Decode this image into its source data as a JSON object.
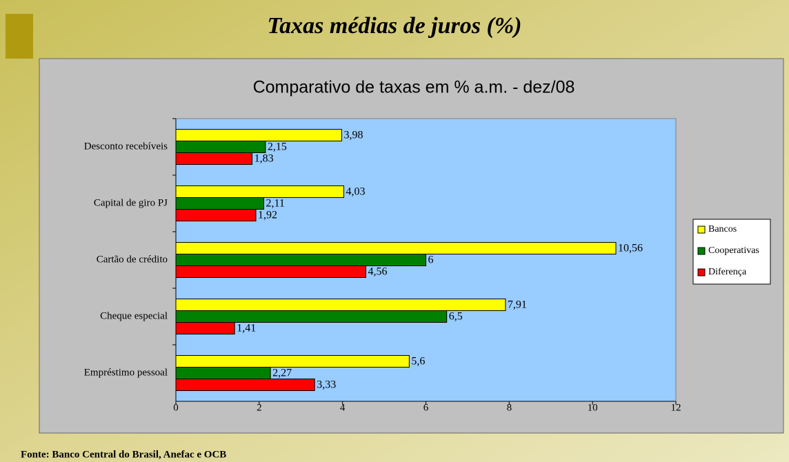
{
  "slide": {
    "title": "Taxas médias de juros (%)",
    "source": "Fonte: Banco Central do Brasil, Anefac e OCB"
  },
  "chart_data": {
    "type": "bar",
    "orientation": "horizontal",
    "title": "Comparativo de taxas em % a.m. - dez/08",
    "categories": [
      "Desconto recebíveis",
      "Capital de giro PJ",
      "Cartão de crédito",
      "Cheque especial",
      "Empréstimo pessoal"
    ],
    "series": [
      {
        "name": "Bancos",
        "color": "#ffff00",
        "values": [
          3.98,
          4.03,
          10.56,
          7.91,
          5.6
        ],
        "value_labels": [
          "3,98",
          "4,03",
          "10,56",
          "7,91",
          "5,6"
        ]
      },
      {
        "name": "Cooperativas",
        "color": "#008000",
        "values": [
          2.15,
          2.11,
          6,
          6.5,
          2.27
        ],
        "value_labels": [
          "2,15",
          "2,11",
          "6",
          "6,5",
          "2,27"
        ]
      },
      {
        "name": "Diferença",
        "color": "#ff0000",
        "values": [
          1.83,
          1.92,
          4.56,
          1.41,
          3.33
        ],
        "value_labels": [
          "1,83",
          "1,92",
          "4,56",
          "1,41",
          "3,33"
        ]
      }
    ],
    "xlim": [
      0,
      12
    ],
    "xticks": [
      0,
      2,
      4,
      6,
      8,
      10,
      12
    ],
    "legend": "right"
  }
}
